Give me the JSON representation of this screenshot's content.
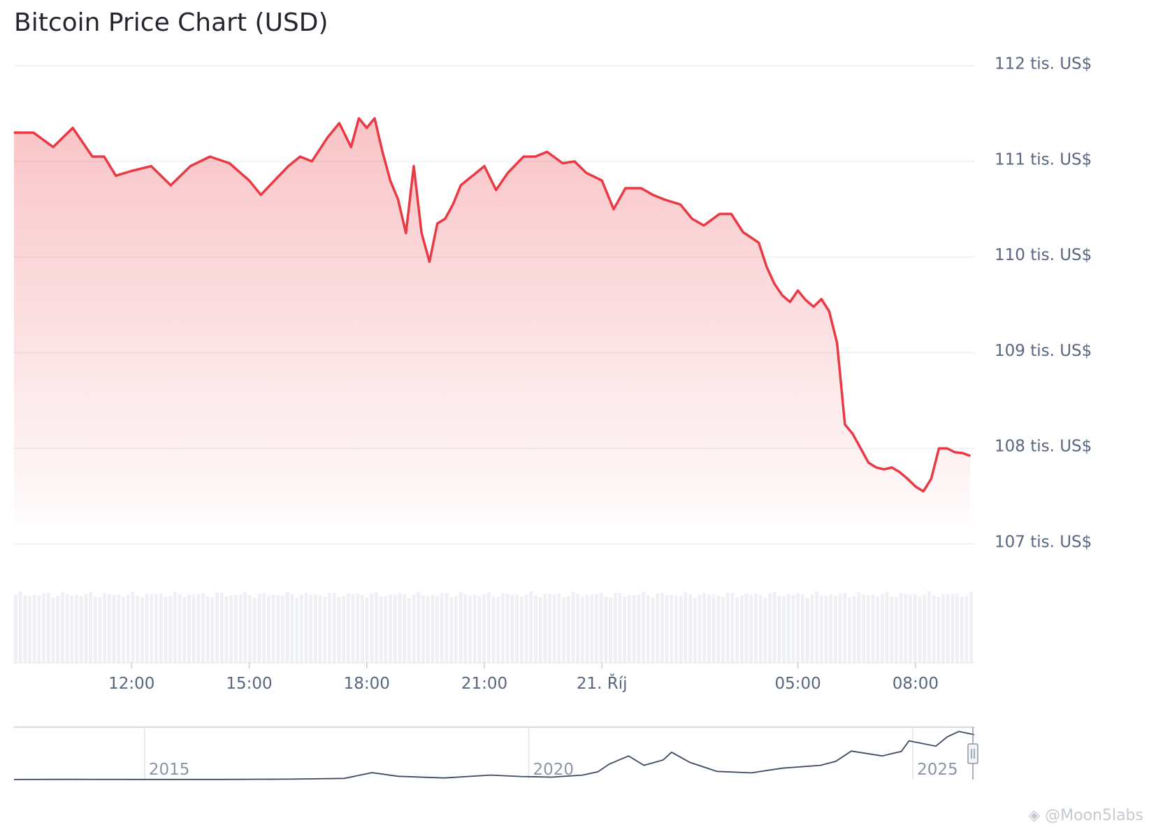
{
  "chart_data": {
    "type": "area",
    "title": "Bitcoin Price Chart (USD)",
    "y_axis": {
      "ticks": [
        112000,
        111000,
        110000,
        109000,
        108000,
        107000
      ],
      "tick_labels": [
        "112 tis. US$",
        "111 tis. US$",
        "110 tis. US$",
        "109 tis. US$",
        "108 tis. US$",
        "107 tis. US$"
      ],
      "ylim": [
        107000,
        112000
      ],
      "position": "right"
    },
    "x_axis": {
      "tick_labels": [
        "12:00",
        "15:00",
        "18:00",
        "21:00",
        "21. Říj",
        "05:00",
        "08:00"
      ],
      "tick_hours": [
        12,
        15,
        18,
        21,
        24,
        29,
        32
      ],
      "xlim_hours": [
        9,
        33.5
      ]
    },
    "grid": true,
    "line_color": "#ea3943",
    "fill_color": "#ea3943",
    "series": [
      {
        "x_hours": [
          9.0,
          9.5,
          10.0,
          10.5,
          11.0,
          11.3,
          11.6,
          12.0,
          12.5,
          13.0,
          13.5,
          14.0,
          14.5,
          15.0,
          15.3,
          15.6,
          16.0,
          16.3,
          16.6,
          17.0,
          17.3,
          17.6,
          17.8,
          18.0,
          18.2,
          18.4,
          18.6,
          18.8,
          19.0,
          19.2,
          19.4,
          19.6,
          19.8,
          20.0,
          20.2,
          20.4,
          20.7,
          21.0,
          21.3,
          21.6,
          22.0,
          22.3,
          22.6,
          23.0,
          23.3,
          23.6,
          24.0,
          24.3,
          24.6,
          25.0,
          25.3,
          25.6,
          26.0,
          26.3,
          26.6,
          27.0,
          27.3,
          27.6,
          28.0,
          28.2,
          28.4,
          28.6,
          28.8,
          29.0,
          29.2,
          29.4,
          29.6,
          29.8,
          30.0,
          30.2,
          30.4,
          30.6,
          30.8,
          31.0,
          31.2,
          31.4,
          31.6,
          31.8,
          32.0,
          32.2,
          32.4,
          32.6,
          32.8,
          33.0,
          33.2,
          33.4
        ],
        "values": [
          111300,
          111300,
          111150,
          111350,
          111050,
          111050,
          110850,
          110900,
          110950,
          110750,
          110950,
          111050,
          110980,
          110800,
          110650,
          110780,
          110950,
          111050,
          111000,
          111250,
          111400,
          111150,
          111450,
          111350,
          111450,
          111100,
          110800,
          110600,
          110250,
          110950,
          110250,
          109950,
          110350,
          110400,
          110550,
          110750,
          110850,
          110950,
          110700,
          110880,
          111050,
          111050,
          111100,
          110980,
          111000,
          110880,
          110800,
          110500,
          110720,
          110720,
          110650,
          110600,
          110550,
          110400,
          110330,
          110450,
          110450,
          110260,
          110150,
          109900,
          109720,
          109600,
          109530,
          109650,
          109550,
          109480,
          109560,
          109430,
          109100,
          108250,
          108150,
          108000,
          107850,
          107800,
          107780,
          107800,
          107750,
          107680,
          107600,
          107550,
          107680,
          108000,
          108000,
          107960,
          107950,
          107920
        ]
      }
    ],
    "volume_bars": {
      "count": 205,
      "min": 0.91,
      "max": 1.0
    },
    "navigator": {
      "tick_labels": [
        "2015",
        "2020",
        "2025"
      ],
      "tick_years": [
        2015,
        2020,
        2025
      ],
      "xlim_years": [
        2013.3,
        2025.8
      ],
      "years": [
        2013.3,
        2014.0,
        2015.0,
        2016.0,
        2016.9,
        2017.6,
        2017.96,
        2018.3,
        2018.9,
        2019.5,
        2019.9,
        2020.3,
        2020.7,
        2020.9,
        2021.05,
        2021.3,
        2021.5,
        2021.75,
        2021.86,
        2022.1,
        2022.45,
        2022.9,
        2023.3,
        2023.8,
        2024.0,
        2024.2,
        2024.6,
        2024.85,
        2024.95,
        2025.3,
        2025.45,
        2025.6,
        2025.8
      ],
      "prices_k": [
        0.1,
        0.6,
        0.3,
        0.4,
        1.0,
        3.0,
        17.0,
        8.0,
        4.0,
        11.0,
        7.5,
        6.0,
        11.0,
        19.0,
        38.0,
        58.0,
        35.0,
        48.0,
        67.0,
        42.0,
        20.0,
        16.5,
        28.0,
        35.0,
        45.0,
        70.0,
        58.0,
        69.0,
        95.0,
        82.0,
        105.0,
        118.0,
        110.0
      ]
    }
  },
  "watermark": "@Moon5labs"
}
